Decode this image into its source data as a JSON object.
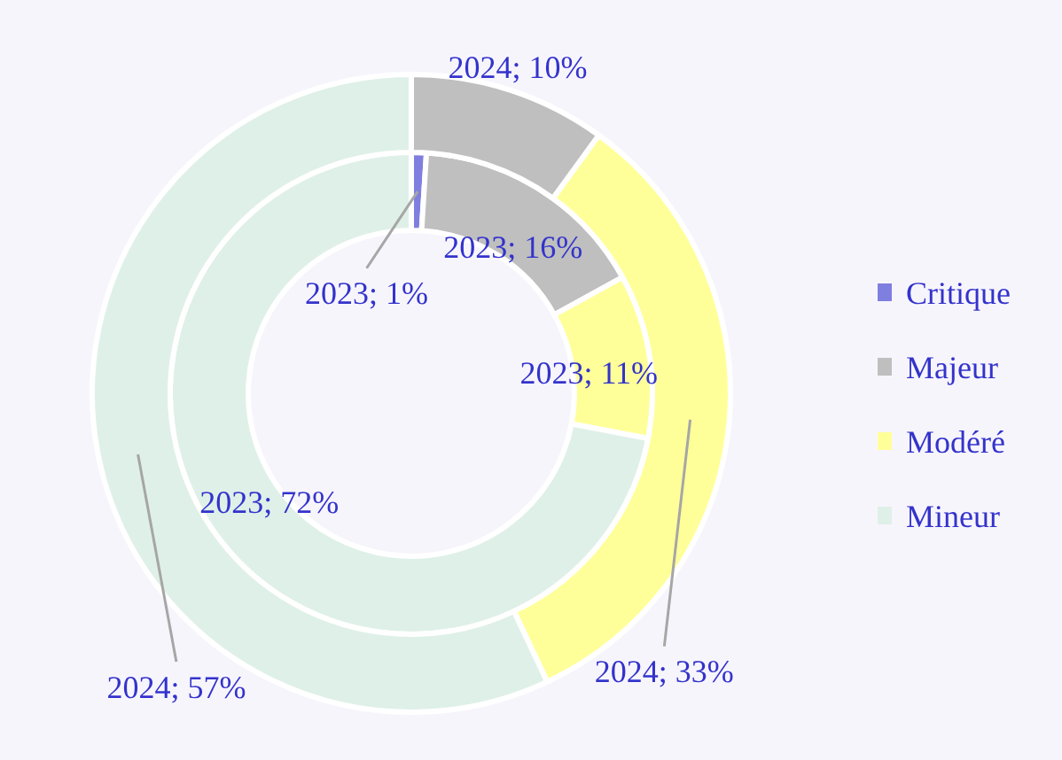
{
  "chart_data": {
    "type": "donut",
    "categories": [
      "Critique",
      "Majeur",
      "Modéré",
      "Mineur"
    ],
    "colors": [
      "#7f7fdf",
      "#bfbfbf",
      "#ffff99",
      "#dff0e8"
    ],
    "series": [
      {
        "values": [
          1,
          16,
          11,
          72
        ],
        "value_labels": [
          "2023; 1%",
          "2023; 16%",
          "2023; 11%",
          "2023; 72%"
        ]
      },
      {
        "values": [
          0,
          10,
          33,
          57
        ],
        "value_labels": [
          null,
          "2024; 10%",
          "2024; 33%",
          "2024; 57%"
        ]
      }
    ],
    "legend": "right"
  }
}
